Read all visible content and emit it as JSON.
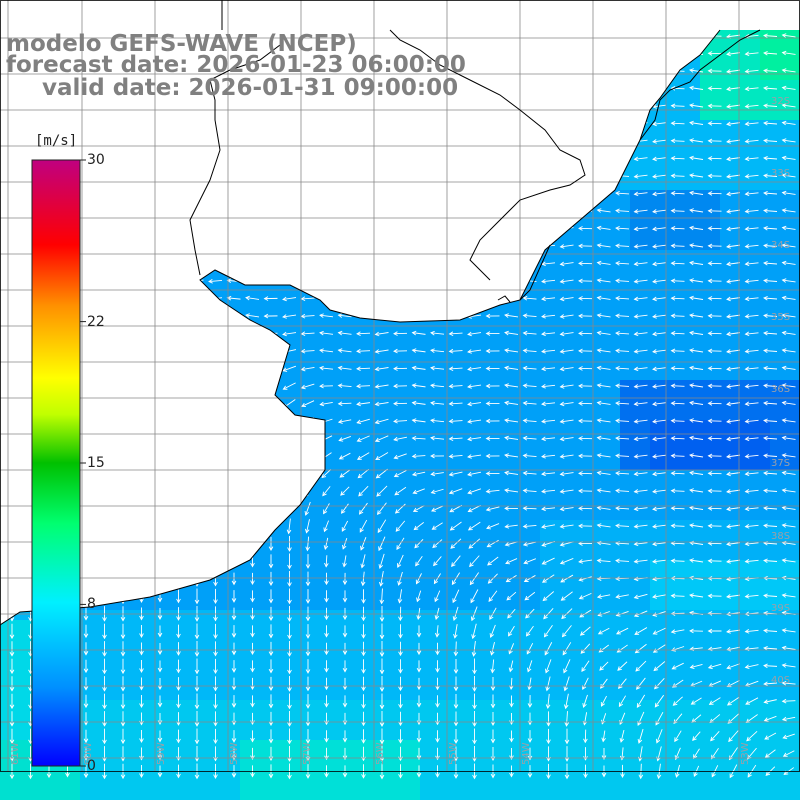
{
  "header": {
    "model": "modelo GEFS-WAVE (NCEP)",
    "forecast": "forecast date: 2026-01-23 06:00:00",
    "valid": "valid date: 2026-01-31 09:00:00"
  },
  "colorbar": {
    "unit": "[m/s]",
    "ticks": [
      "30",
      "22",
      "15",
      "8",
      "0"
    ],
    "tick_values": [
      30,
      22,
      15,
      8,
      0
    ],
    "range": [
      0,
      30
    ],
    "colors": [
      "#0000ff",
      "#0090ff",
      "#00e0ff",
      "#00ff90",
      "#00d000",
      "#c0ff00",
      "#ffff00",
      "#ffa000",
      "#ff3000",
      "#ff0000",
      "#e0005a",
      "#c00080"
    ]
  },
  "map": {
    "lat_labels": [
      "32S",
      "33S",
      "34S",
      "35S",
      "36S",
      "37S",
      "38S",
      "39S",
      "40S"
    ],
    "lon_labels": [
      "61W",
      "60W",
      "59W",
      "58W",
      "57W",
      "56W",
      "55W",
      "54W",
      "53W"
    ],
    "wind_direction": "easterly, turning southward near the coast",
    "wind_speed_range_ms": [
      5,
      10
    ]
  }
}
